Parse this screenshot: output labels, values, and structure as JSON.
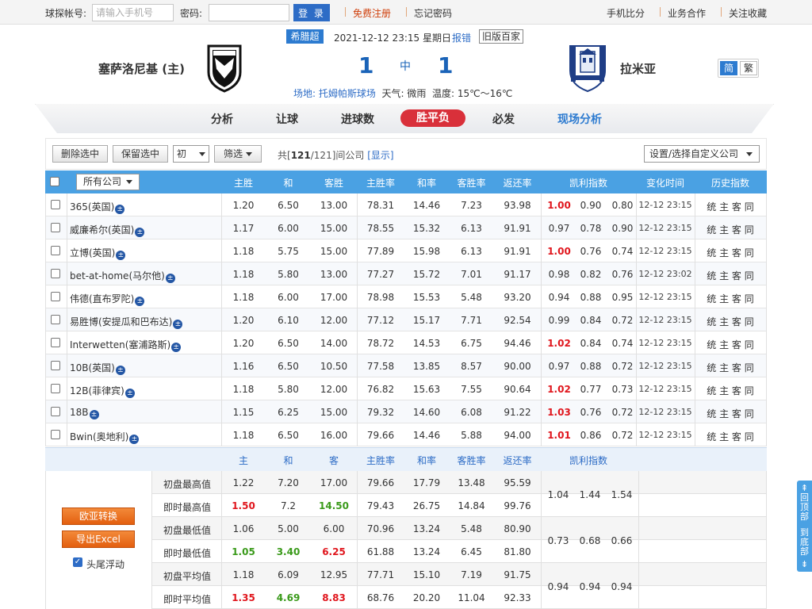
{
  "topbar": {
    "account_label": "球探帐号:",
    "account_placeholder": "请输入手机号",
    "password_label": "密码:",
    "login_label": "登 录",
    "register": "免费注册",
    "forgot": "忘记密码",
    "mobile": "手机比分",
    "business": "业务合作",
    "follow": "关注收藏"
  },
  "match": {
    "home_team": "塞萨洛尼基 (主)",
    "away_team": "拉米亚",
    "league": "希腊超",
    "datetime": "2021-12-12 23:15 星期日",
    "report": "报错",
    "old_version": "旧版百家",
    "home_score": "1",
    "away_score": "1",
    "status": "中",
    "venue_label": "场地:",
    "venue": "托姆帕斯球场",
    "weather": "天气: 微雨",
    "temperature": "温度: 15℃～16℃",
    "lang_simplified": "简",
    "lang_traditional": "繁"
  },
  "tabs": [
    "分析",
    "让球",
    "进球数",
    "胜平负",
    "必发",
    "现场分析"
  ],
  "filter": {
    "delete_selected": "删除选中",
    "keep_selected": "保留选中",
    "odds_type": "初",
    "filter": "筛选",
    "count_prefix": "共[",
    "count_shown": "121",
    "count_total": "/121]间公司",
    "show_link": "[显示]",
    "custom_company": "设置/选择自定义公司"
  },
  "table": {
    "company_select": "所有公司",
    "headers": [
      "主胜",
      "和",
      "客胜",
      "主胜率",
      "和率",
      "客胜率",
      "返还率",
      "凯利指数",
      "变化时间",
      "历史指数"
    ],
    "history_links": "统 主 客 同",
    "rows": [
      {
        "name": "365(英国)",
        "odds": [
          "1.20",
          "6.50",
          "13.00"
        ],
        "rates": [
          "78.31",
          "14.46",
          "7.23",
          "93.98"
        ],
        "kelly": [
          "1.00",
          "0.90",
          "0.80"
        ],
        "kelly_hot": true,
        "time": "12-12 23:15"
      },
      {
        "name": "威廉希尔(英国)",
        "odds": [
          "1.17",
          "6.00",
          "15.00"
        ],
        "rates": [
          "78.55",
          "15.32",
          "6.13",
          "91.91"
        ],
        "kelly": [
          "0.97",
          "0.78",
          "0.90"
        ],
        "kelly_hot": false,
        "time": "12-12 23:15"
      },
      {
        "name": "立博(英国)",
        "odds": [
          "1.18",
          "5.75",
          "15.00"
        ],
        "rates": [
          "77.89",
          "15.98",
          "6.13",
          "91.91"
        ],
        "kelly": [
          "1.00",
          "0.76",
          "0.74"
        ],
        "kelly_hot": true,
        "time": "12-12 23:15"
      },
      {
        "name": "bet-at-home(马尔他)",
        "odds": [
          "1.18",
          "5.80",
          "13.00"
        ],
        "rates": [
          "77.27",
          "15.72",
          "7.01",
          "91.17"
        ],
        "kelly": [
          "0.98",
          "0.82",
          "0.76"
        ],
        "kelly_hot": false,
        "time": "12-12 23:02"
      },
      {
        "name": "伟德(直布罗陀)",
        "odds": [
          "1.18",
          "6.00",
          "17.00"
        ],
        "rates": [
          "78.98",
          "15.53",
          "5.48",
          "93.20"
        ],
        "kelly": [
          "0.94",
          "0.88",
          "0.95"
        ],
        "kelly_hot": false,
        "time": "12-12 23:15"
      },
      {
        "name": "易胜博(安提瓜和巴布达)",
        "odds": [
          "1.20",
          "6.10",
          "12.00"
        ],
        "rates": [
          "77.12",
          "15.17",
          "7.71",
          "92.54"
        ],
        "kelly": [
          "0.99",
          "0.84",
          "0.72"
        ],
        "kelly_hot": false,
        "time": "12-12 23:15"
      },
      {
        "name": "Interwetten(塞浦路斯)",
        "odds": [
          "1.20",
          "6.50",
          "14.00"
        ],
        "rates": [
          "78.72",
          "14.53",
          "6.75",
          "94.46"
        ],
        "kelly": [
          "1.02",
          "0.84",
          "0.74"
        ],
        "kelly_hot": true,
        "time": "12-12 23:15"
      },
      {
        "name": "10B(英国)",
        "odds": [
          "1.16",
          "6.50",
          "10.50"
        ],
        "rates": [
          "77.58",
          "13.85",
          "8.57",
          "90.00"
        ],
        "kelly": [
          "0.97",
          "0.88",
          "0.72"
        ],
        "kelly_hot": false,
        "time": "12-12 23:15"
      },
      {
        "name": "12B(菲律宾)",
        "odds": [
          "1.18",
          "5.80",
          "12.00"
        ],
        "rates": [
          "76.82",
          "15.63",
          "7.55",
          "90.64"
        ],
        "kelly": [
          "1.02",
          "0.77",
          "0.73"
        ],
        "kelly_hot": true,
        "time": "12-12 23:15"
      },
      {
        "name": "18B",
        "odds": [
          "1.15",
          "6.25",
          "15.00"
        ],
        "rates": [
          "79.32",
          "14.60",
          "6.08",
          "91.22"
        ],
        "kelly": [
          "1.03",
          "0.76",
          "0.72"
        ],
        "kelly_hot": true,
        "time": "12-12 23:15"
      },
      {
        "name": "Bwin(奥地利)",
        "odds": [
          "1.18",
          "6.50",
          "16.00"
        ],
        "rates": [
          "79.66",
          "14.46",
          "5.88",
          "94.00"
        ],
        "kelly": [
          "1.01",
          "0.86",
          "0.72"
        ],
        "kelly_hot": true,
        "time": "12-12 23:15"
      }
    ]
  },
  "summary": {
    "headers": [
      "主",
      "和",
      "客",
      "主胜率",
      "和率",
      "客胜率",
      "返还率",
      "凯利指数"
    ],
    "rows": [
      {
        "label": "初盘最高值",
        "values": [
          "1.22",
          "7.20",
          "17.00",
          "79.66",
          "17.79",
          "13.48",
          "95.59"
        ],
        "styles": [
          "",
          "",
          "",
          "",
          "",
          "",
          ""
        ]
      },
      {
        "label": "即时最高值",
        "values": [
          "1.50",
          "7.2",
          "14.50",
          "79.43",
          "26.75",
          "14.84",
          "99.76"
        ],
        "styles": [
          "red",
          "",
          "green",
          "",
          "",
          "",
          ""
        ]
      },
      {
        "label": "初盘最低值",
        "values": [
          "1.06",
          "5.00",
          "6.00",
          "70.96",
          "13.24",
          "5.48",
          "80.90"
        ],
        "styles": [
          "",
          "",
          "",
          "",
          "",
          "",
          ""
        ]
      },
      {
        "label": "即时最低值",
        "values": [
          "1.05",
          "3.40",
          "6.25",
          "61.88",
          "13.24",
          "6.45",
          "81.80"
        ],
        "styles": [
          "green",
          "green",
          "red",
          "",
          "",
          "",
          ""
        ]
      },
      {
        "label": "初盘平均值",
        "values": [
          "1.18",
          "6.09",
          "12.95",
          "77.71",
          "15.10",
          "7.19",
          "91.75"
        ],
        "styles": [
          "",
          "",
          "",
          "",
          "",
          "",
          ""
        ]
      },
      {
        "label": "即时平均值",
        "values": [
          "1.35",
          "4.69",
          "8.83",
          "68.76",
          "20.20",
          "11.04",
          "92.33"
        ],
        "styles": [
          "red",
          "green",
          "red",
          "",
          "",
          "",
          ""
        ]
      }
    ],
    "kelly_groups": [
      [
        "1.04",
        "1.44",
        "1.54"
      ],
      [
        "0.73",
        "0.68",
        "0.66"
      ],
      [
        "0.94",
        "0.94",
        "0.94"
      ]
    ],
    "convert_btn": "欧亚转换",
    "export_btn": "导出Excel",
    "float_label": "头尾浮动"
  },
  "side": {
    "to_top": "回顶部",
    "to_bottom": "到底部"
  },
  "colors": {
    "accent_blue": "#4aa1e3",
    "active_tab": "#d9303a",
    "score_blue": "#1a63b8",
    "kelly_red": "#e0161d",
    "green": "#3a9a1a"
  }
}
